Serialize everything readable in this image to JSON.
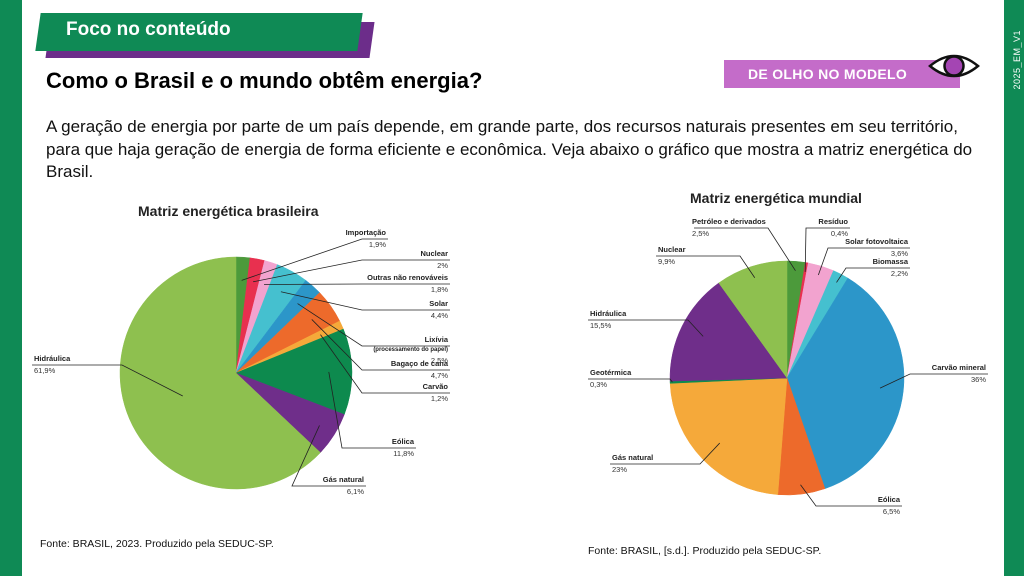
{
  "header": {
    "tag_label": "Foco no conteúdo",
    "badge_label": "DE OLHO NO MODELO",
    "side_code": "2025_EM_V1"
  },
  "main": {
    "title": "Como o Brasil e o mundo obtêm energia?",
    "intro": "A geração de energia por parte de um país depende, em grande parte, dos recursos naturais presentes em seu território, para que haja geração de energia de forma eficiente e econômica. Veja abaixo o gráfico que mostra a matriz energética do Brasil."
  },
  "sources": {
    "brazil": "Fonte: BRASIL, 2023. Produzido pela SEDUC-SP.",
    "world": "Fonte: BRASIL, [s.d.]. Produzido pela SEDUC-SP."
  },
  "colors": {
    "brand_green": "#0f8a55",
    "brand_purple": "#6c2d8a",
    "badge_pink": "#c46cc9"
  },
  "chart_data": [
    {
      "type": "pie",
      "title": "Matriz energética brasileira",
      "slices": [
        {
          "label": "Importação",
          "display": "1,9%",
          "value": 1.9,
          "color": "#4c9a3b"
        },
        {
          "label": "Nuclear",
          "display": "2%",
          "value": 2.0,
          "color": "#e8304f"
        },
        {
          "label": "Outras não renováveis",
          "display": "1,8%",
          "value": 1.8,
          "color": "#f2a3cf"
        },
        {
          "label": "Solar",
          "display": "4,4%",
          "value": 4.4,
          "color": "#45c0cf"
        },
        {
          "label": "Lixívia",
          "sublabel": "(processamento do papel)",
          "display": "2,5%",
          "value": 2.5,
          "color": "#2c96c9"
        },
        {
          "label": "Bagaço de cana",
          "display": "4,7%",
          "value": 4.7,
          "color": "#ed6a2b"
        },
        {
          "label": "Carvão",
          "display": "1,2%",
          "value": 1.2,
          "color": "#f5a93a"
        },
        {
          "label": "Eólica",
          "display": "11,8%",
          "value": 11.8,
          "color": "#0d8a4e"
        },
        {
          "label": "Gás natural",
          "display": "6,1%",
          "value": 6.1,
          "color": "#6f2e8a"
        },
        {
          "label": "Hidráulica",
          "display": "61,9%",
          "value": 61.9,
          "color": "#8ec04f"
        }
      ]
    },
    {
      "type": "pie",
      "title": "Matriz energética mundial",
      "slices": [
        {
          "label": "Petróleo e derivados",
          "display": "2,5%",
          "value": 2.5,
          "color": "#4c9a3b"
        },
        {
          "label": "Resíduo",
          "display": "0,4%",
          "value": 0.4,
          "color": "#e8304f"
        },
        {
          "label": "Solar fotovoltaica",
          "display": "3,6%",
          "value": 3.6,
          "color": "#f2a3cf"
        },
        {
          "label": "Biomassa",
          "display": "2,2%",
          "value": 2.2,
          "color": "#45c0cf"
        },
        {
          "label": "Carvão mineral",
          "display": "36%",
          "value": 36,
          "color": "#2c96c9"
        },
        {
          "label": "Eólica",
          "display": "6,5%",
          "value": 6.5,
          "color": "#ed6a2b"
        },
        {
          "label": "Gás natural",
          "display": "23%",
          "value": 23,
          "color": "#f5a93a"
        },
        {
          "label": "Geotérmica",
          "display": "0,3%",
          "value": 0.3,
          "color": "#0d8a4e"
        },
        {
          "label": "Hidráulica",
          "display": "15,5%",
          "value": 15.5,
          "color": "#6f2e8a"
        },
        {
          "label": "Nuclear",
          "display": "9,9%",
          "value": 9.9,
          "color": "#8ec04f"
        }
      ]
    }
  ]
}
